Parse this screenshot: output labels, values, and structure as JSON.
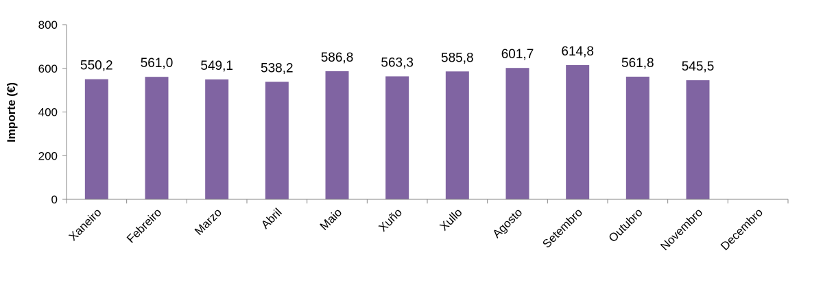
{
  "chart_data": {
    "type": "bar",
    "title": "",
    "xlabel": "",
    "ylabel": "Importe (€)",
    "ylim": [
      0,
      800
    ],
    "yticks": [
      0,
      200,
      400,
      600,
      800
    ],
    "grid": false,
    "legend": "none",
    "bar_color": "#8064A2",
    "axis_color": "#868686",
    "categories": [
      "Xaneiro",
      "Febreiro",
      "Marzo",
      "Abril",
      "Maio",
      "Xuño",
      "Xullo",
      "Agosto",
      "Setembro",
      "Outubro",
      "Novembro",
      "Decembro"
    ],
    "values": [
      550.2,
      561.0,
      549.1,
      538.2,
      586.8,
      563.3,
      585.8,
      601.7,
      614.8,
      561.8,
      545.5,
      null
    ],
    "value_labels": [
      "550,2",
      "561,0",
      "549,1",
      "538,2",
      "586,8",
      "563,3",
      "585,8",
      "601,7",
      "614,8",
      "561,8",
      "545,5",
      ""
    ]
  }
}
